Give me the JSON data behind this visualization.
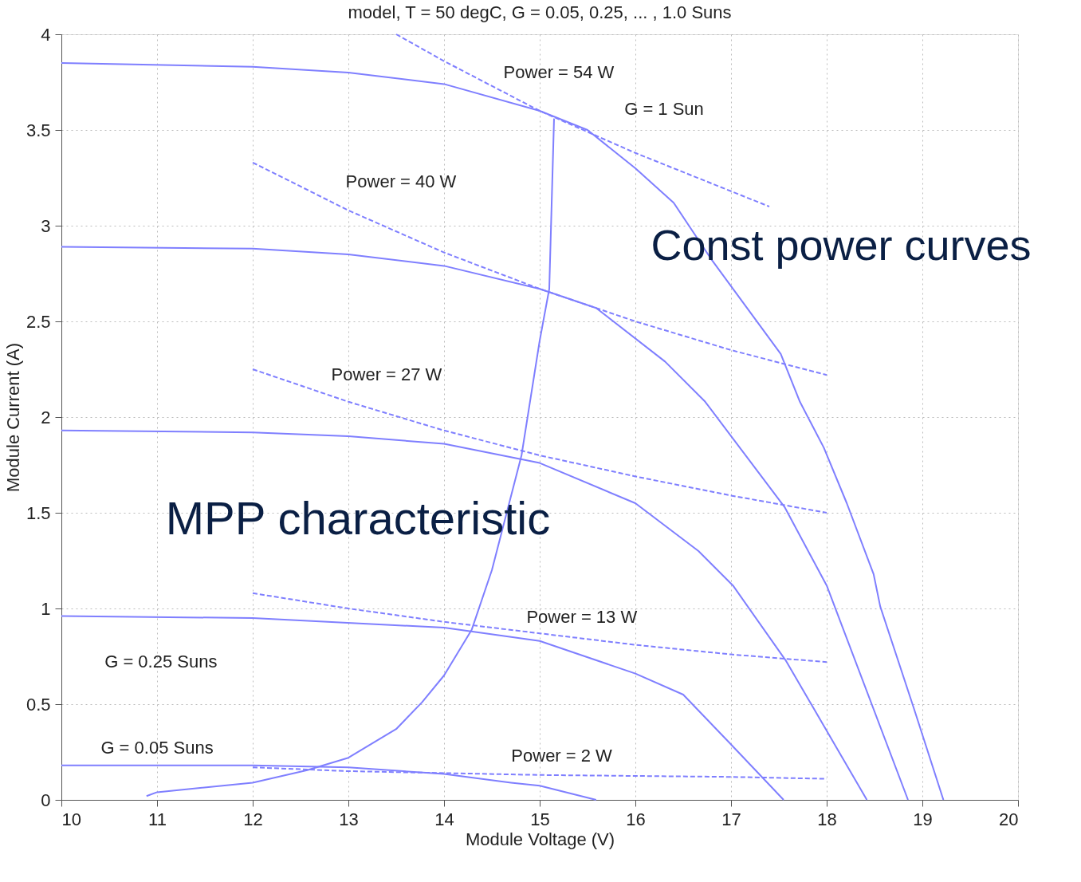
{
  "chart_data": {
    "type": "line",
    "title": "model, T = 50 degC, G = 0.05, 0.25, ... , 1.0 Suns",
    "xlabel": "Module Voltage (V)",
    "ylabel": "Module Current (A)",
    "xlim": [
      10,
      20
    ],
    "xticks": [
      10,
      11,
      12,
      13,
      14,
      15,
      16,
      17,
      18,
      19,
      20
    ],
    "ylim": [
      0,
      4
    ],
    "yticks": [
      0,
      0.5,
      1,
      1.5,
      2,
      2.5,
      3,
      3.5,
      4
    ],
    "grid": true,
    "marker": "none",
    "series": [
      {
        "line_style": "solid",
        "color": "#7f7fff",
        "x": [
          10,
          12,
          13,
          14,
          15,
          15.5,
          16,
          16.4,
          16.8,
          17.52,
          17.72,
          17.97,
          18.21,
          18.49,
          18.56,
          18.91,
          19.22
        ],
        "values": [
          3.85,
          3.83,
          3.8,
          3.74,
          3.6,
          3.5,
          3.3,
          3.12,
          2.82,
          2.33,
          2.08,
          1.84,
          1.55,
          1.18,
          1.01,
          0.48,
          0
        ]
      },
      {
        "line_style": "solid",
        "color": "#7f7fff",
        "x": [
          10,
          12,
          13,
          14,
          15,
          15.59,
          16.31,
          16.73,
          17.56,
          18.0,
          18.85
        ],
        "values": [
          2.89,
          2.88,
          2.85,
          2.79,
          2.67,
          2.57,
          2.29,
          2.08,
          1.53,
          1.12,
          0
        ]
      },
      {
        "line_style": "solid",
        "color": "#7f7fff",
        "x": [
          10,
          12,
          13,
          14,
          15,
          16,
          16.66,
          17.02,
          17.57,
          18.42
        ],
        "values": [
          1.93,
          1.92,
          1.9,
          1.86,
          1.76,
          1.55,
          1.3,
          1.12,
          0.73,
          0
        ]
      },
      {
        "line_style": "solid",
        "color": "#7f7fff",
        "x": [
          10,
          12,
          14,
          15,
          16,
          16.5,
          16.98,
          17.55
        ],
        "values": [
          0.96,
          0.95,
          0.9,
          0.83,
          0.66,
          0.55,
          0.3,
          0
        ]
      },
      {
        "line_style": "solid",
        "color": "#7f7fff",
        "x": [
          10,
          12,
          13,
          14,
          14.7,
          15,
          15.59
        ],
        "values": [
          0.18,
          0.18,
          0.17,
          0.135,
          0.09,
          0.074,
          0
        ]
      },
      {
        "line_style": "solid",
        "color": "#7f7fff",
        "x": [
          10.89,
          11,
          12,
          12.57,
          13,
          13.5,
          13.77,
          14.0,
          14.29,
          14.5,
          14.81,
          15.0,
          15.1,
          15.15
        ],
        "values": [
          0.02,
          0.04,
          0.09,
          0.155,
          0.22,
          0.37,
          0.51,
          0.65,
          0.89,
          1.2,
          1.8,
          2.4,
          2.67,
          3.56
        ]
      },
      {
        "line_style": "dashed",
        "color": "#7f7fff",
        "x": [
          13.5,
          14,
          15,
          16,
          17,
          17.4
        ],
        "values": [
          4.0,
          3.86,
          3.6,
          3.38,
          3.18,
          3.1
        ]
      },
      {
        "line_style": "dashed",
        "color": "#7f7fff",
        "x": [
          12,
          13,
          14,
          15,
          16,
          17,
          18
        ],
        "values": [
          3.33,
          3.08,
          2.86,
          2.67,
          2.5,
          2.35,
          2.22
        ]
      },
      {
        "line_style": "dashed",
        "color": "#7f7fff",
        "x": [
          12,
          13,
          14,
          15,
          16,
          17,
          18
        ],
        "values": [
          2.25,
          2.08,
          1.93,
          1.8,
          1.69,
          1.59,
          1.5
        ]
      },
      {
        "line_style": "dashed",
        "color": "#7f7fff",
        "x": [
          12,
          13,
          14,
          15,
          16,
          17,
          18
        ],
        "values": [
          1.08,
          1.0,
          0.93,
          0.87,
          0.81,
          0.76,
          0.72
        ]
      },
      {
        "line_style": "dashed",
        "color": "#7f7fff",
        "x": [
          12,
          13,
          14,
          15,
          16,
          17,
          18
        ],
        "values": [
          0.17,
          0.15,
          0.14,
          0.13,
          0.125,
          0.12,
          0.11
        ]
      }
    ],
    "annotations": [
      "Power = 54 W",
      "G = 1 Sun",
      "Power = 40 W",
      "Power = 27 W",
      "Power = 13 W",
      "Power = 2 W",
      "G = 0.25 Suns",
      "G = 0.05 Suns",
      "MPP characteristic",
      "Const power curves"
    ]
  }
}
